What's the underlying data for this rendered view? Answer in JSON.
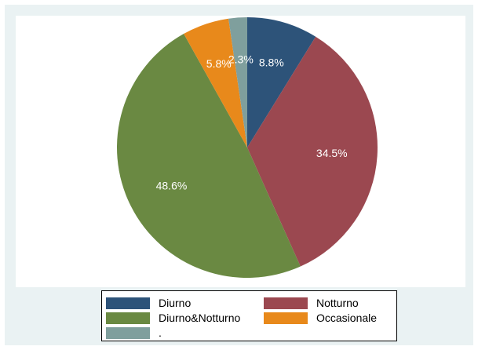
{
  "chart_data": {
    "type": "pie",
    "start_angle_deg": 90,
    "direction": "clockwise",
    "background_color": "#eaf2f3",
    "plot_background_color": "#ffffff",
    "legend_position": "bottom",
    "slices": [
      {
        "name": "Diurno",
        "value": 8.8,
        "label": "8.8%",
        "color": "#2d5379"
      },
      {
        "name": "Notturno",
        "value": 34.5,
        "label": "34.5%",
        "color": "#9b4850"
      },
      {
        "name": "Diurno&Notturno",
        "value": 48.6,
        "label": "48.6%",
        "color": "#6a8942"
      },
      {
        "name": "Occasionale",
        "value": 5.8,
        "label": "5.8%",
        "color": "#e8891b"
      },
      {
        "name": ".",
        "value": 2.3,
        "label": "2.3%",
        "color": "#7f9f9d"
      }
    ]
  }
}
